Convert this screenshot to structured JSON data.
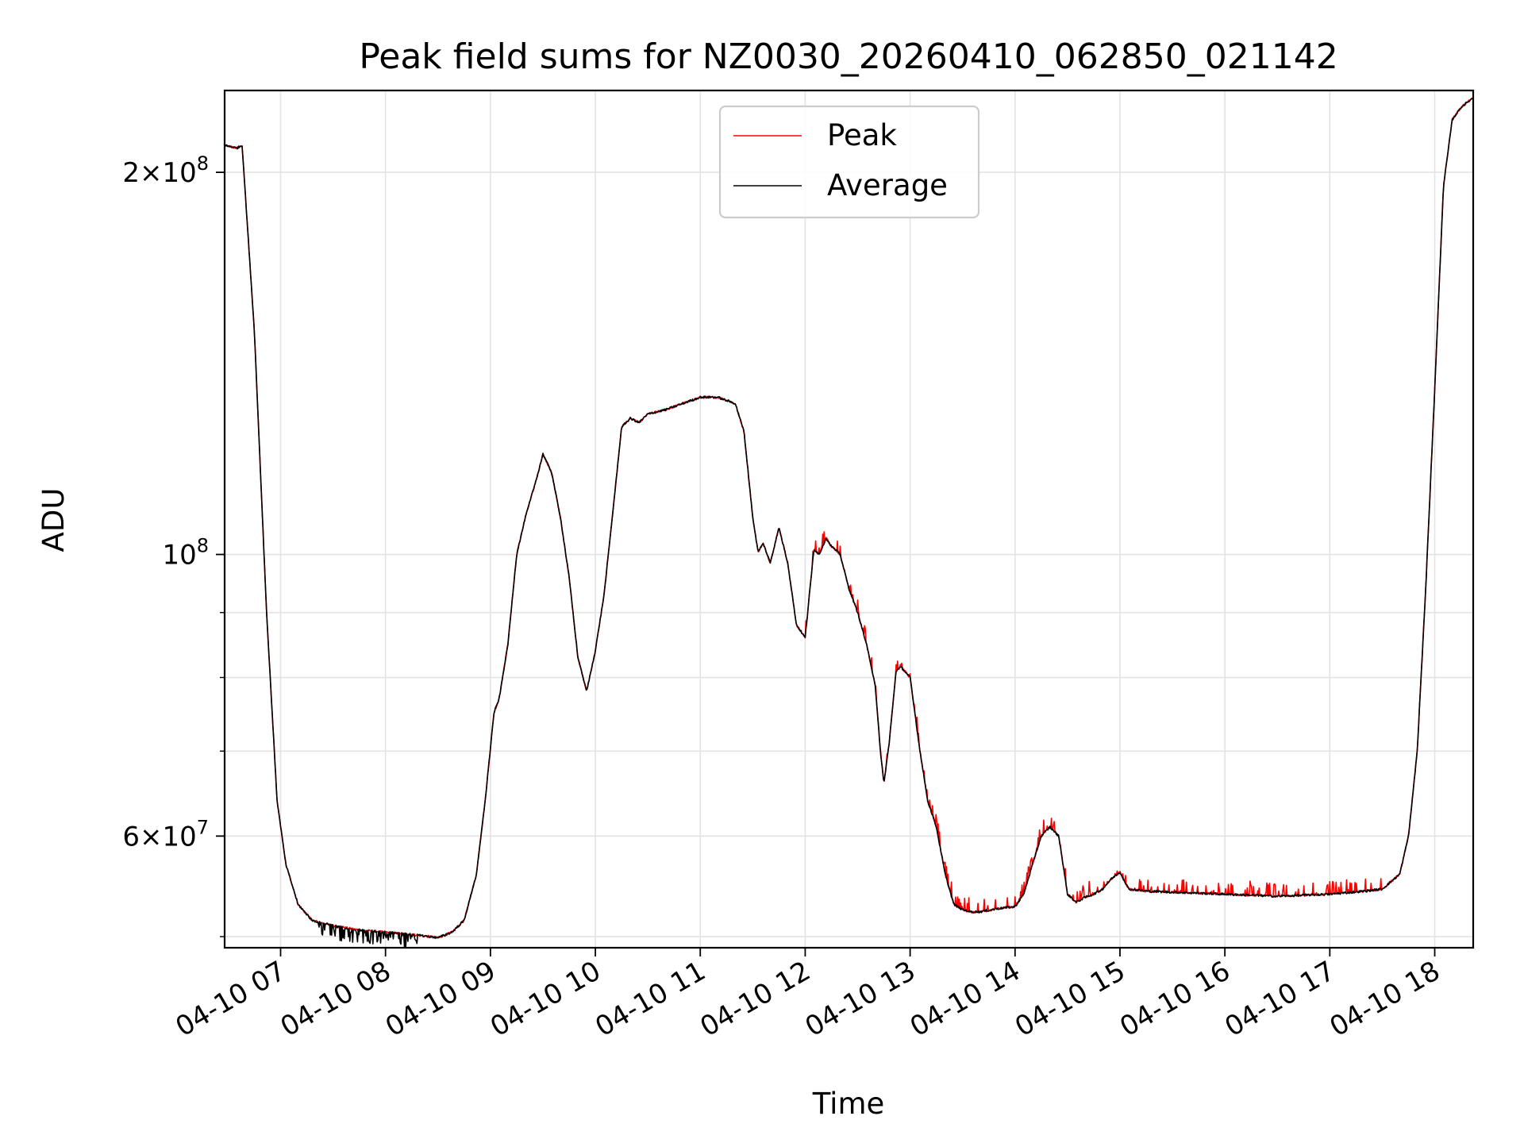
{
  "chart_data": {
    "type": "line",
    "title": "Peak field sums for NZ0030_20260410_062850_021142",
    "xlabel": "Time",
    "ylabel": "ADU",
    "xlim": [
      "04-10 06:28",
      "04-10 18:22"
    ],
    "ylim": [
      49000000,
      232000000
    ],
    "y_scale": "log",
    "grid": true,
    "legend": "upper center",
    "x_ticks": [
      {
        "t": "04-10 07:00",
        "label": "04-10 07"
      },
      {
        "t": "04-10 08:00",
        "label": "04-10 08"
      },
      {
        "t": "04-10 09:00",
        "label": "04-10 09"
      },
      {
        "t": "04-10 10:00",
        "label": "04-10 10"
      },
      {
        "t": "04-10 11:00",
        "label": "04-10 11"
      },
      {
        "t": "04-10 12:00",
        "label": "04-10 12"
      },
      {
        "t": "04-10 13:00",
        "label": "04-10 13"
      },
      {
        "t": "04-10 14:00",
        "label": "04-10 14"
      },
      {
        "t": "04-10 15:00",
        "label": "04-10 15"
      },
      {
        "t": "04-10 16:00",
        "label": "04-10 16"
      },
      {
        "t": "04-10 17:00",
        "label": "04-10 17"
      },
      {
        "t": "04-10 18:00",
        "label": "04-10 18"
      }
    ],
    "y_major_ticks": [
      {
        "v": 60000000,
        "mant": "6",
        "exp": "7"
      },
      {
        "v": 100000000,
        "mant": "",
        "exp": "8"
      },
      {
        "v": 200000000,
        "mant": "2",
        "exp": "8"
      }
    ],
    "y_minor_ticks": [
      50000000,
      70000000,
      80000000,
      90000000,
      300000000
    ],
    "series": [
      {
        "name": "Peak",
        "color": "#ff0000",
        "noise": "upper"
      },
      {
        "name": "Average",
        "color": "#000000",
        "noise": "lower"
      }
    ],
    "x": [
      "04-10 06:28",
      "04-10 06:35",
      "04-10 06:38",
      "04-10 06:45",
      "04-10 06:52",
      "04-10 06:58",
      "04-10 07:03",
      "04-10 07:10",
      "04-10 07:18",
      "04-10 07:30",
      "04-10 07:45",
      "04-10 08:00",
      "04-10 08:15",
      "04-10 08:30",
      "04-10 08:38",
      "04-10 08:45",
      "04-10 08:52",
      "04-10 08:57",
      "04-10 09:02",
      "04-10 09:05",
      "04-10 09:10",
      "04-10 09:15",
      "04-10 09:20",
      "04-10 09:25",
      "04-10 09:28",
      "04-10 09:30",
      "04-10 09:35",
      "04-10 09:40",
      "04-10 09:45",
      "04-10 09:50",
      "04-10 09:55",
      "04-10 10:00",
      "04-10 10:05",
      "04-10 10:10",
      "04-10 10:15",
      "04-10 10:20",
      "04-10 10:25",
      "04-10 10:30",
      "04-10 10:40",
      "04-10 10:50",
      "04-10 11:00",
      "04-10 11:10",
      "04-10 11:20",
      "04-10 11:25",
      "04-10 11:30",
      "04-10 11:33",
      "04-10 11:36",
      "04-10 11:40",
      "04-10 11:45",
      "04-10 11:50",
      "04-10 11:55",
      "04-10 12:00",
      "04-10 12:05",
      "04-10 12:08",
      "04-10 12:12",
      "04-10 12:15",
      "04-10 12:20",
      "04-10 12:25",
      "04-10 12:30",
      "04-10 12:35",
      "04-10 12:40",
      "04-10 12:43",
      "04-10 12:45",
      "04-10 12:48",
      "04-10 12:52",
      "04-10 12:55",
      "04-10 13:00",
      "04-10 13:05",
      "04-10 13:10",
      "04-10 13:15",
      "04-10 13:20",
      "04-10 13:25",
      "04-10 13:30",
      "04-10 13:35",
      "04-10 13:40",
      "04-10 13:50",
      "04-10 14:00",
      "04-10 14:05",
      "04-10 14:10",
      "04-10 14:15",
      "04-10 14:20",
      "04-10 14:25",
      "04-10 14:30",
      "04-10 14:35",
      "04-10 14:40",
      "04-10 14:45",
      "04-10 14:50",
      "04-10 14:55",
      "04-10 15:00",
      "04-10 15:05",
      "04-10 15:15",
      "04-10 15:30",
      "04-10 16:00",
      "04-10 16:30",
      "04-10 17:00",
      "04-10 17:20",
      "04-10 17:30",
      "04-10 17:40",
      "04-10 17:45",
      "04-10 17:50",
      "04-10 17:55",
      "04-10 18:00",
      "04-10 18:05",
      "04-10 18:10",
      "04-10 18:15",
      "04-10 18:22"
    ],
    "y": [
      210000000,
      209000000,
      210000000,
      150000000,
      90000000,
      64000000,
      57000000,
      53000000,
      51500000,
      51000000,
      50600000,
      50400000,
      50200000,
      49900000,
      50400000,
      51500000,
      56000000,
      64000000,
      75000000,
      77000000,
      85000000,
      100000000,
      107000000,
      113000000,
      117000000,
      120000000,
      116000000,
      107000000,
      96000000,
      83000000,
      78000000,
      84000000,
      93000000,
      108000000,
      126000000,
      128000000,
      127000000,
      129000000,
      130000000,
      131500000,
      133000000,
      133000000,
      131500000,
      125000000,
      107000000,
      100500000,
      102000000,
      98500000,
      105000000,
      98500000,
      88000000,
      86000000,
      101000000,
      100000000,
      103000000,
      101500000,
      100000000,
      94000000,
      90000000,
      85000000,
      79000000,
      70000000,
      66000000,
      71000000,
      81000000,
      81500000,
      80000000,
      71000000,
      64000000,
      61000000,
      56000000,
      53000000,
      52500000,
      52300000,
      52300000,
      52600000,
      52800000,
      54000000,
      57000000,
      60000000,
      61000000,
      60000000,
      54000000,
      53200000,
      53700000,
      54000000,
      54500000,
      55500000,
      56200000,
      54500000,
      54300000,
      54200000,
      54000000,
      53800000,
      54000000,
      54300000,
      54500000,
      56000000,
      60000000,
      70000000,
      95000000,
      135000000,
      195000000,
      220000000,
      225000000,
      229000000
    ]
  }
}
